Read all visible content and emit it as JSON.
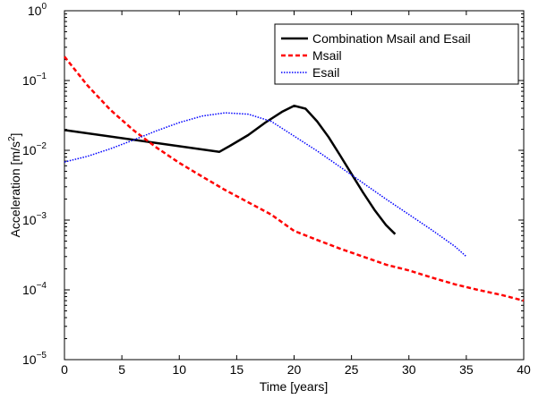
{
  "chart_data": {
    "type": "line",
    "title": "",
    "xlabel": "Time [years]",
    "ylabel_main": "Acceleration [m/s",
    "ylabel_sup": "2",
    "ylabel_end": "]",
    "xlim": [
      0,
      40
    ],
    "ylim": [
      1e-05,
      1
    ],
    "y_scale": "log",
    "grid": false,
    "legend_position": "top-right",
    "x_ticks": [
      0,
      5,
      10,
      15,
      20,
      25,
      30,
      35,
      40
    ],
    "x_tick_labels": [
      "0",
      "5",
      "10",
      "15",
      "20",
      "25",
      "30",
      "35",
      "40"
    ],
    "y_ticks": [
      1e-05,
      0.0001,
      0.001,
      0.01,
      0.1,
      1
    ],
    "y_tick_labels": [
      {
        "base": "10",
        "exp": "−5"
      },
      {
        "base": "10",
        "exp": "−4"
      },
      {
        "base": "10",
        "exp": "−3"
      },
      {
        "base": "10",
        "exp": "−2"
      },
      {
        "base": "10",
        "exp": "−1"
      },
      {
        "base": "10",
        "exp": "0"
      }
    ],
    "series": [
      {
        "name": "Combination Msail and Esail",
        "color": "#000000",
        "style": "solid",
        "x": [
          0,
          13.5,
          14.5,
          16,
          17.5,
          19,
          20,
          21,
          22,
          23,
          24,
          25,
          26,
          27,
          28,
          28.8
        ],
        "y": [
          0.0195,
          0.0095,
          0.0118,
          0.0165,
          0.025,
          0.036,
          0.0435,
          0.0395,
          0.026,
          0.0155,
          0.0085,
          0.0046,
          0.0025,
          0.0014,
          0.00085,
          0.00063
        ]
      },
      {
        "name": "Msail",
        "color": "#ff0000",
        "style": "dashed",
        "x": [
          0,
          2,
          4,
          6,
          8,
          10,
          12,
          14,
          16,
          18,
          20,
          22,
          24,
          26,
          28,
          30,
          32,
          34,
          36,
          38,
          40
        ],
        "y": [
          0.22,
          0.085,
          0.038,
          0.0195,
          0.011,
          0.0066,
          0.0042,
          0.0027,
          0.0018,
          0.0012,
          0.0007,
          0.00052,
          0.00039,
          0.0003,
          0.00023,
          0.00019,
          0.00015,
          0.00012,
          0.0001,
          8.5e-05,
          7e-05
        ]
      },
      {
        "name": "Esail",
        "color": "#0000ff",
        "style": "dotted",
        "x": [
          0,
          2,
          4,
          6,
          8,
          10,
          12,
          14,
          16,
          18,
          20,
          22,
          24,
          26,
          28,
          30,
          32,
          34,
          35
        ],
        "y": [
          0.0068,
          0.0082,
          0.0105,
          0.014,
          0.019,
          0.025,
          0.031,
          0.0345,
          0.033,
          0.026,
          0.016,
          0.0098,
          0.0058,
          0.0034,
          0.002,
          0.0012,
          0.00072,
          0.00042,
          0.0003
        ]
      }
    ]
  }
}
